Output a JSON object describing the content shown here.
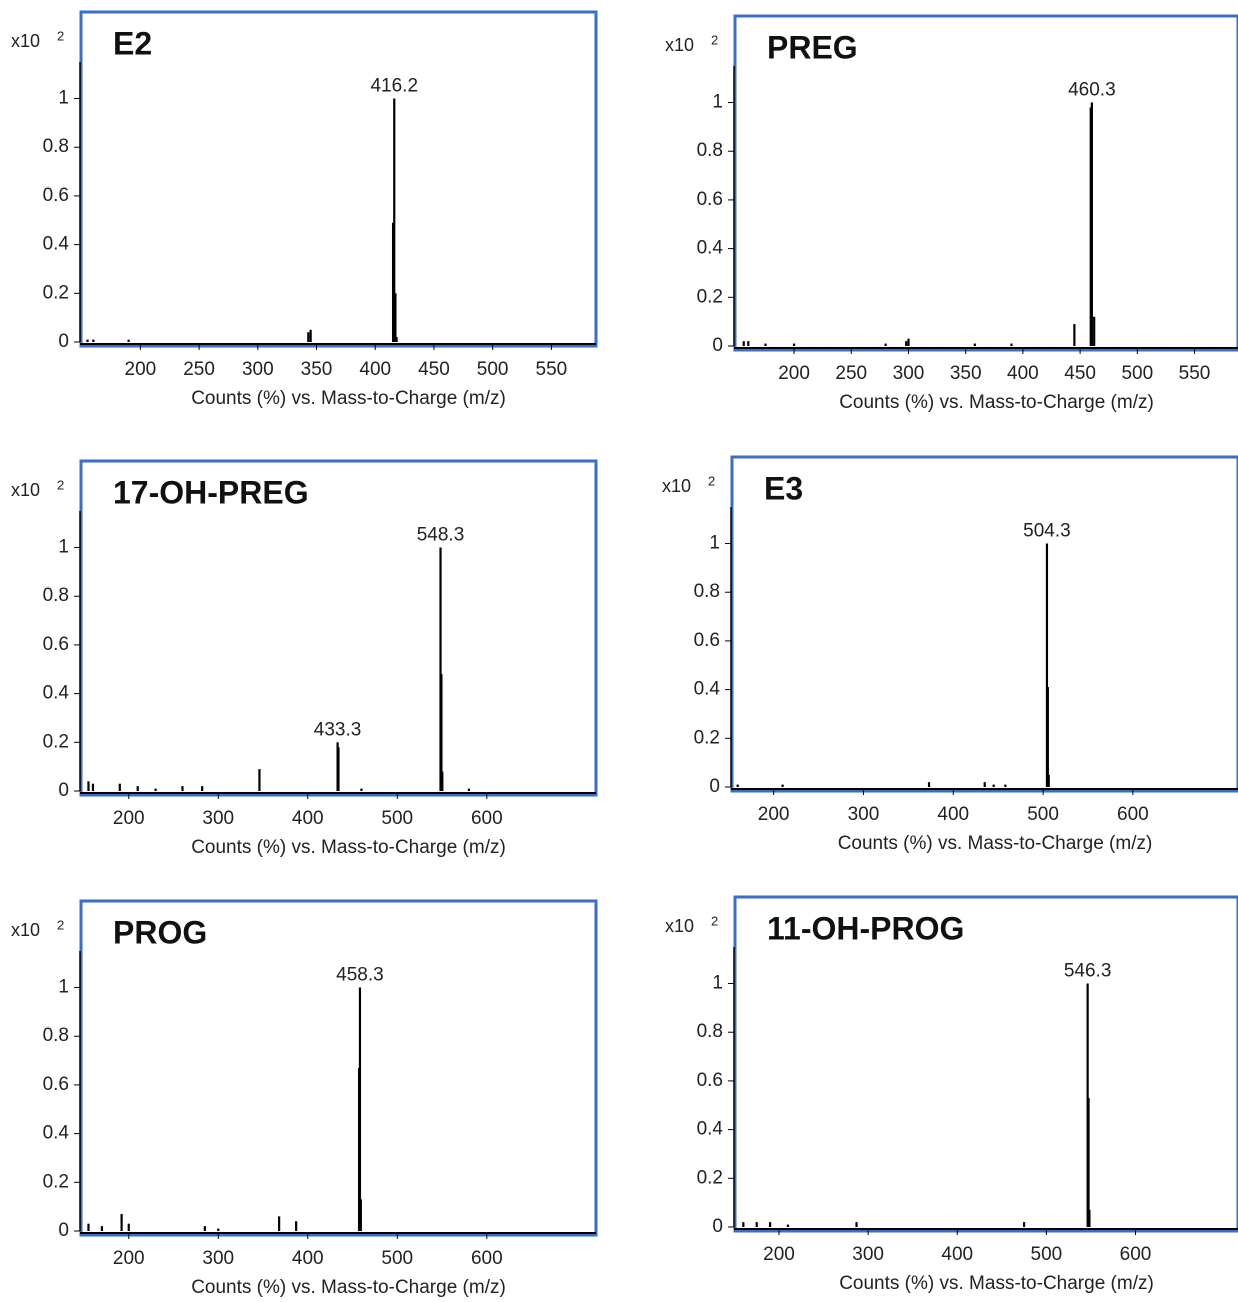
{
  "chart_data": [
    {
      "type": "bar",
      "title": "E2",
      "y_scale": "x10",
      "y_exponent": "2",
      "x_label": "Counts (%) vs. Mass-to-Charge (m/z)",
      "color": "#000000",
      "frame_color": "#3a6fc8",
      "x": [
        155,
        160,
        190,
        343,
        345,
        415.2,
        416.2,
        417.2,
        418.2
      ],
      "values": [
        0.01,
        0.01,
        0.01,
        0.04,
        0.05,
        0.49,
        1,
        0.2,
        0.02
      ],
      "peak_labels": [
        416.2
      ],
      "xlim": [
        152,
        588
      ],
      "xticks": [
        200,
        250,
        300,
        350,
        400,
        450,
        500,
        550
      ],
      "ylim": [
        0,
        1.15
      ],
      "yticks": [
        0,
        0.2,
        0.4,
        0.6,
        0.8,
        1
      ]
    },
    {
      "type": "bar",
      "title": "PREG",
      "y_scale": "x10",
      "y_exponent": "2",
      "x_label": "Counts (%) vs. Mass-to-Charge (m/z)",
      "color": "#000000",
      "frame_color": "#3a6fc8",
      "x": [
        156,
        160,
        175,
        200,
        280,
        298,
        300,
        358,
        390,
        445,
        459.3,
        460.3,
        462.3
      ],
      "values": [
        0.02,
        0.02,
        0.01,
        0.01,
        0.01,
        0.02,
        0.03,
        0.01,
        0.01,
        0.09,
        0.98,
        1,
        0.12
      ],
      "peak_labels": [
        460.3
      ],
      "xlim": [
        151,
        588
      ],
      "xticks": [
        200,
        250,
        300,
        350,
        400,
        450,
        500,
        550
      ],
      "ylim": [
        0,
        1.15
      ],
      "yticks": [
        0,
        0.2,
        0.4,
        0.6,
        0.8,
        1
      ]
    },
    {
      "type": "bar",
      "title": "17-OH-PREG",
      "y_scale": "x10",
      "y_exponent": "2",
      "x_label": "Counts (%) vs. Mass-to-Charge (m/z)",
      "color": "#000000",
      "frame_color": "#3a6fc8",
      "x": [
        155,
        160,
        190,
        210,
        230,
        260,
        282,
        346,
        433.3,
        434.3,
        460,
        548.3,
        549.3,
        550.3,
        580
      ],
      "values": [
        0.04,
        0.03,
        0.03,
        0.02,
        0.01,
        0.02,
        0.02,
        0.09,
        0.2,
        0.18,
        0.01,
        1,
        0.48,
        0.08,
        0.01
      ],
      "peak_labels": [
        433.3,
        548.3
      ],
      "xlim": [
        150,
        722
      ],
      "xticks": [
        200,
        300,
        400,
        500,
        600
      ],
      "ylim": [
        0,
        1.15
      ],
      "yticks": [
        0,
        0.2,
        0.4,
        0.6,
        0.8,
        1
      ]
    },
    {
      "type": "bar",
      "title": "E3",
      "y_scale": "x10",
      "y_exponent": "2",
      "x_label": "Counts (%) vs. Mass-to-Charge (m/z)",
      "color": "#000000",
      "frame_color": "#3a6fc8",
      "x": [
        160,
        210,
        373,
        435,
        445,
        458,
        504.3,
        505.3,
        506.3
      ],
      "values": [
        0.01,
        0.01,
        0.02,
        0.02,
        0.01,
        0.01,
        1,
        0.41,
        0.05
      ],
      "peak_labels": [
        504.3
      ],
      "xlim": [
        157,
        717
      ],
      "xticks": [
        200,
        300,
        400,
        500,
        600
      ],
      "ylim": [
        0,
        1.15
      ],
      "yticks": [
        0,
        0.2,
        0.4,
        0.6,
        0.8,
        1
      ]
    },
    {
      "type": "bar",
      "title": "PROG",
      "y_scale": "x10",
      "y_exponent": "2",
      "x_label": "Counts (%) vs. Mass-to-Charge (m/z)",
      "color": "#000000",
      "frame_color": "#3a6fc8",
      "x": [
        155,
        170,
        192,
        200,
        285,
        300,
        368,
        387,
        457.3,
        458.3,
        459.3
      ],
      "values": [
        0.03,
        0.02,
        0.07,
        0.03,
        0.02,
        0.01,
        0.06,
        0.04,
        0.67,
        1,
        0.13
      ],
      "peak_labels": [
        458.3
      ],
      "xlim": [
        150,
        722
      ],
      "xticks": [
        200,
        300,
        400,
        500,
        600
      ],
      "ylim": [
        0,
        1.15
      ],
      "yticks": [
        0,
        0.2,
        0.4,
        0.6,
        0.8,
        1
      ]
    },
    {
      "type": "bar",
      "title": "11-OH-PROG",
      "y_scale": "x10",
      "y_exponent": "2",
      "x_label": "Counts (%) vs. Mass-to-Charge (m/z)",
      "color": "#000000",
      "frame_color": "#3a6fc8",
      "x": [
        160,
        175,
        190,
        210,
        287,
        475,
        546.3,
        547.3,
        548.3
      ],
      "values": [
        0.02,
        0.02,
        0.02,
        0.01,
        0.02,
        0.02,
        1,
        0.53,
        0.07
      ],
      "peak_labels": [
        546.3
      ],
      "xlim": [
        154,
        715
      ],
      "xticks": [
        200,
        300,
        400,
        500,
        600
      ],
      "ylim": [
        0,
        1.15
      ],
      "yticks": [
        0,
        0.2,
        0.4,
        0.6,
        0.8,
        1
      ]
    }
  ]
}
